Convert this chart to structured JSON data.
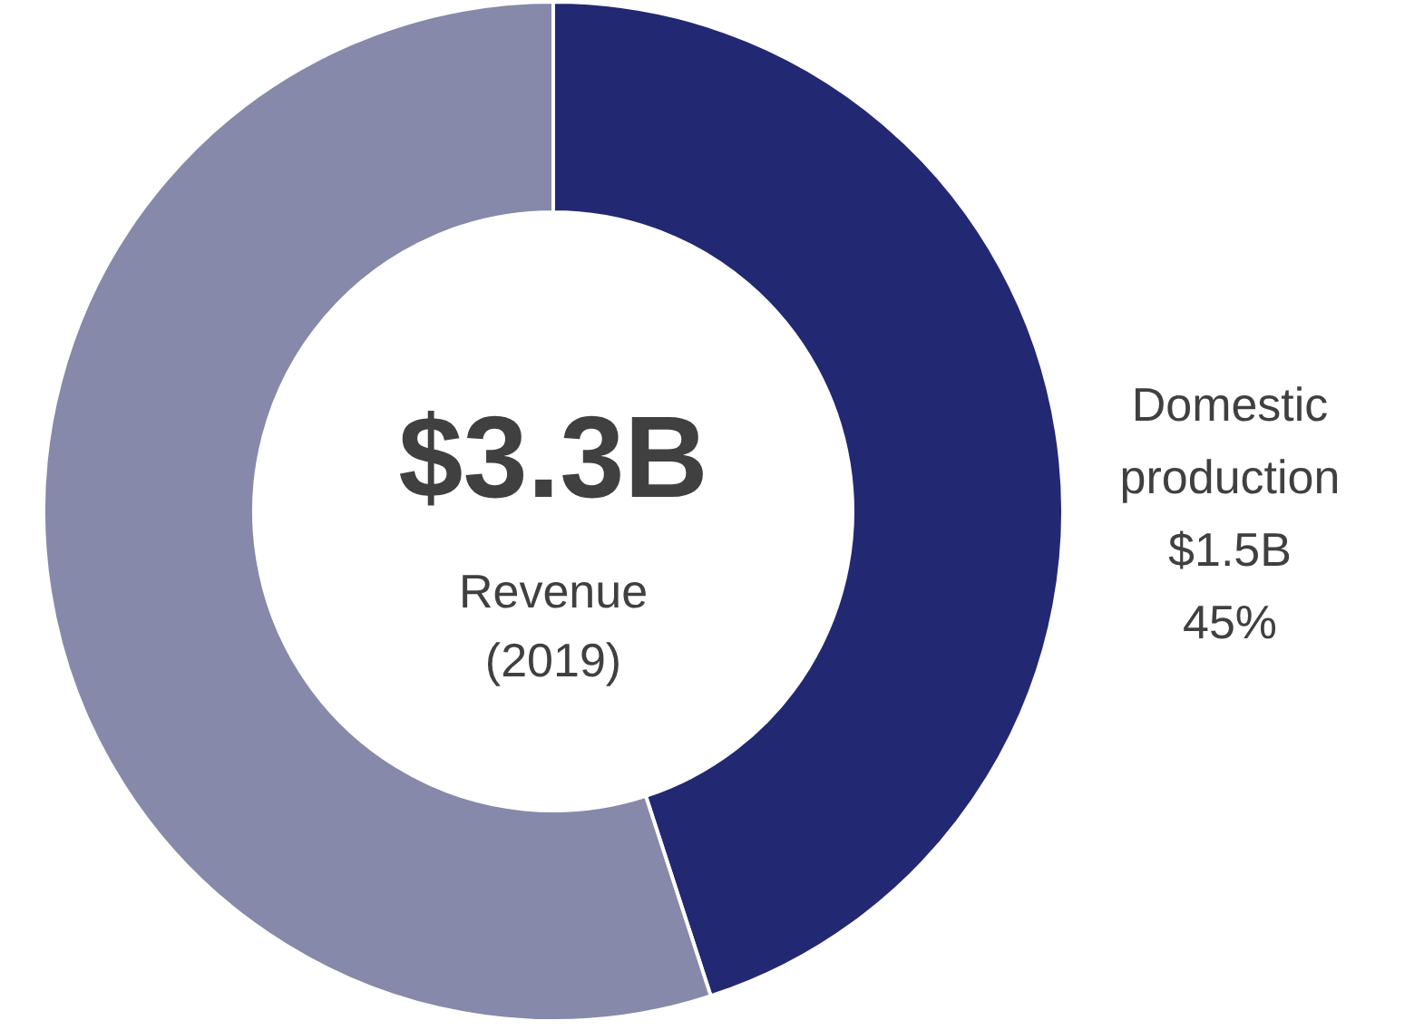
{
  "chart_data": {
    "type": "donut",
    "categories": [
      "Domestic production",
      null
    ],
    "values": [
      45,
      55
    ],
    "colors": [
      "#232873",
      "#8689aa"
    ],
    "value_labels": [
      "$1.5B\n45%",
      null
    ],
    "annotations": [
      "$3.3B",
      "Revenue",
      "(2019)"
    ]
  }
}
